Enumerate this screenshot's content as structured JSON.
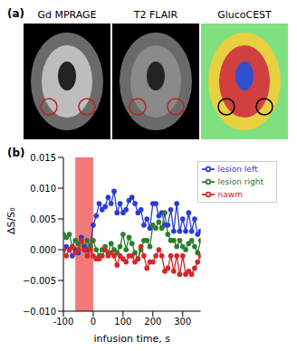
{
  "panel_a": {
    "panel_label": "(a)",
    "images": [
      "Gd MPRAGE",
      "T2 FLAIR",
      "GlucoCEST"
    ]
  },
  "chart_data": {
    "type": "line",
    "panel_label": "(b)",
    "x_label": "infusion time, s",
    "y_label": "ΔS/S₀",
    "x": [
      -100,
      -90,
      -80,
      -70,
      -60,
      -50,
      -40,
      -30,
      -20,
      -10,
      0,
      10,
      20,
      30,
      40,
      50,
      60,
      70,
      80,
      90,
      100,
      110,
      120,
      130,
      140,
      150,
      160,
      170,
      180,
      190,
      200,
      210,
      220,
      230,
      240,
      250,
      260,
      270,
      280,
      290,
      300,
      310,
      320,
      330,
      340,
      350,
      360
    ],
    "series": [
      {
        "name": "lesion left",
        "color": "#2b3cd6",
        "marker": "circle",
        "values": [
          0.0,
          0.0005,
          0.0,
          -0.001,
          0.0,
          -0.0005,
          0.002,
          0.0005,
          0.0,
          0.0005,
          0.004,
          0.0055,
          0.0075,
          0.0065,
          0.007,
          0.0085,
          0.0075,
          0.0095,
          0.006,
          0.0075,
          0.006,
          0.0065,
          0.008,
          0.0085,
          0.0075,
          0.006,
          0.0065,
          0.004,
          0.005,
          0.0035,
          0.0075,
          0.0075,
          0.0055,
          0.006,
          0.004,
          0.004,
          0.0065,
          0.003,
          0.0075,
          0.003,
          0.005,
          0.003,
          0.006,
          0.003,
          0.005,
          0.0025,
          0.003
        ]
      },
      {
        "name": "lesion right",
        "color": "#2e7d2e",
        "marker": "circle",
        "values": [
          0.0025,
          0.002,
          0.0025,
          0.0005,
          0.0015,
          0.001,
          0.0015,
          0.0,
          0.0015,
          0.0005,
          0.0015,
          0.0,
          -0.001,
          0.0,
          0.0005,
          -0.0005,
          0.001,
          0.0,
          -0.0005,
          0.0005,
          0.0025,
          0.0,
          0.002,
          0.001,
          -0.0005,
          -0.0015,
          0.0,
          0.0015,
          0.0015,
          0.0005,
          0.004,
          0.0035,
          0.0045,
          0.0035,
          0.006,
          0.0025,
          0.0015,
          0.0015,
          0.0005,
          0.0015,
          0.0005,
          0.0,
          0.001,
          0.0015,
          0.0005,
          -0.0005,
          0.0015
        ]
      },
      {
        "name": "nawm",
        "color": "#d62728",
        "marker": "circle",
        "values": [
          0.0,
          -0.001,
          0.0,
          0.0005,
          -0.0005,
          0.0,
          0.0015,
          0.0,
          -0.001,
          0.0,
          -0.001,
          -0.0015,
          -0.0015,
          -0.001,
          0.0,
          -0.001,
          -0.0005,
          -0.001,
          -0.0025,
          -0.001,
          -0.0015,
          -0.002,
          -0.001,
          -0.001,
          -0.002,
          -0.0015,
          0.0005,
          -0.001,
          -0.003,
          -0.002,
          -0.002,
          -0.001,
          0.0,
          -0.001,
          -0.0035,
          -0.003,
          -0.001,
          -0.0035,
          -0.001,
          -0.004,
          -0.001,
          -0.004,
          -0.0035,
          -0.004,
          -0.003,
          -0.002,
          -0.001
        ]
      }
    ],
    "shaded_region": {
      "x": [
        -60,
        0
      ],
      "color": "#f04040"
    },
    "xlim": [
      -100,
      360
    ],
    "xticks": [
      -100,
      0,
      100,
      200,
      300
    ],
    "ylim": [
      -0.01,
      0.015
    ],
    "yticks": [
      {
        "value": -0.01,
        "label": "−0.010"
      },
      {
        "value": -0.005,
        "label": "−0.005"
      },
      {
        "value": 0,
        "label": "0.000"
      },
      {
        "value": 0.005,
        "label": "0.005"
      },
      {
        "value": 0.01,
        "label": "0.010"
      },
      {
        "value": 0.015,
        "label": "0.015"
      }
    ],
    "legend": "upper right",
    "grid": false
  }
}
